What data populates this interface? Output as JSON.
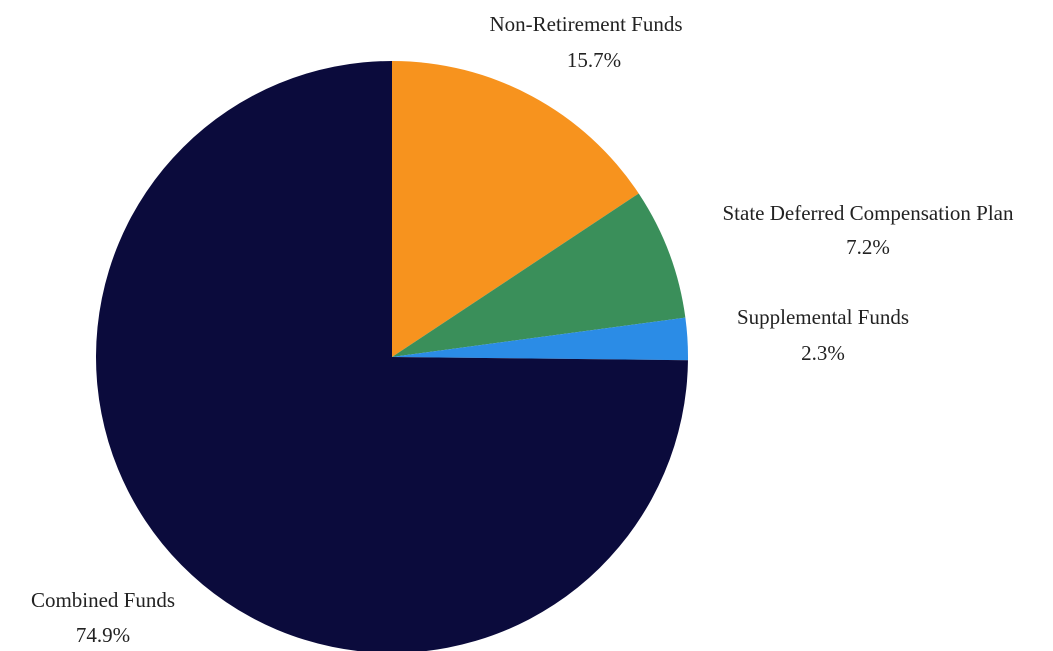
{
  "chart_data": {
    "type": "pie",
    "start_angle_deg": 90,
    "direction": "clockwise",
    "slices": [
      {
        "name": "Non-Retirement Funds",
        "value": 15.7,
        "label": "15.7%",
        "color": "#f7931e"
      },
      {
        "name": "State Deferred Compensation Plan",
        "value": 7.2,
        "label": "7.2%",
        "color": "#3a8f5a"
      },
      {
        "name": "Supplemental Funds",
        "value": 2.3,
        "label": "2.3%",
        "color": "#2b8ce6"
      },
      {
        "name": "Combined Funds",
        "value": 74.9,
        "label": "74.9%",
        "color": "#0b0b3c"
      }
    ]
  }
}
